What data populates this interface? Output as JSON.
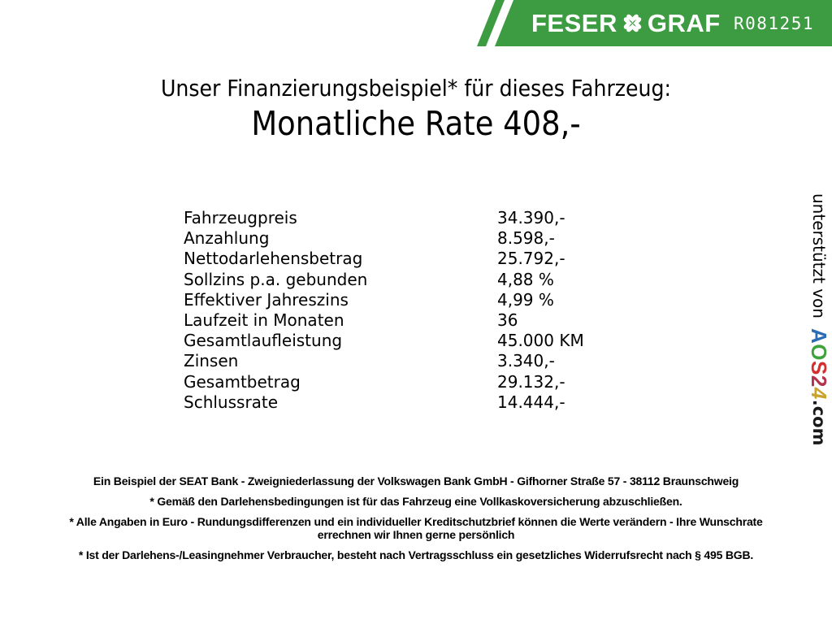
{
  "banner": {
    "green": "#3d9b41",
    "brand": {
      "word1": "FESER",
      "word2": "GRAF"
    },
    "ref_code": "R081251"
  },
  "title": {
    "line1": "Unser Finanzierungsbeispiel* für dieses Fahrzeug:",
    "line2": "Monatliche Rate 408,-"
  },
  "finance_table": {
    "rows": [
      {
        "label": "Fahrzeugpreis",
        "value": "34.390,-"
      },
      {
        "label": "Anzahlung",
        "value": "8.598,-"
      },
      {
        "label": "Nettodarlehensbetrag",
        "value": "25.792,-"
      },
      {
        "label": "Sollzins p.a. gebunden",
        "value": "4,88 %"
      },
      {
        "label": "Effektiver Jahreszins",
        "value": "4,99 %"
      },
      {
        "label": "Laufzeit in Monaten",
        "value": "36"
      },
      {
        "label": "Gesamtlaufleistung",
        "value": "45.000 KM"
      },
      {
        "label": "Zinsen",
        "value": "3.340,-"
      },
      {
        "label": "Gesamtbetrag",
        "value": "29.132,-"
      },
      {
        "label": "Schlussrate",
        "value": "14.444,-"
      }
    ]
  },
  "sidebar": {
    "supported_by": "unterstützt von",
    "logo": {
      "letters": [
        {
          "char": "A",
          "color": "#2a6cb5"
        },
        {
          "char": "O",
          "color": "#3fa33c"
        },
        {
          "char": "S",
          "color": "#d62e2e"
        },
        {
          "char": "2",
          "color": "#b5334a"
        },
        {
          "char": "4",
          "color": "#c9a42c"
        }
      ],
      "suffix": ".com"
    }
  },
  "footer": {
    "paragraphs": [
      "Ein Beispiel der SEAT Bank - Zweigniederlassung der Volkswagen Bank GmbH - Gifhorner Straße 57 - 38112 Braunschweig",
      "* Gemäß den Darlehensbedingungen ist für das Fahrzeug eine Vollkaskoversicherung abzuschließen.",
      "* Alle Angaben in Euro - Rundungsdifferenzen und ein individueller Kreditschutzbrief können die Werte verändern - Ihre Wunschrate errechnen wir Ihnen gerne persönlich",
      "* Ist der Darlehens-/Leasingnehmer Verbraucher, besteht nach Vertragsschluss ein gesetzliches Widerrufsrecht nach § 495 BGB."
    ]
  }
}
